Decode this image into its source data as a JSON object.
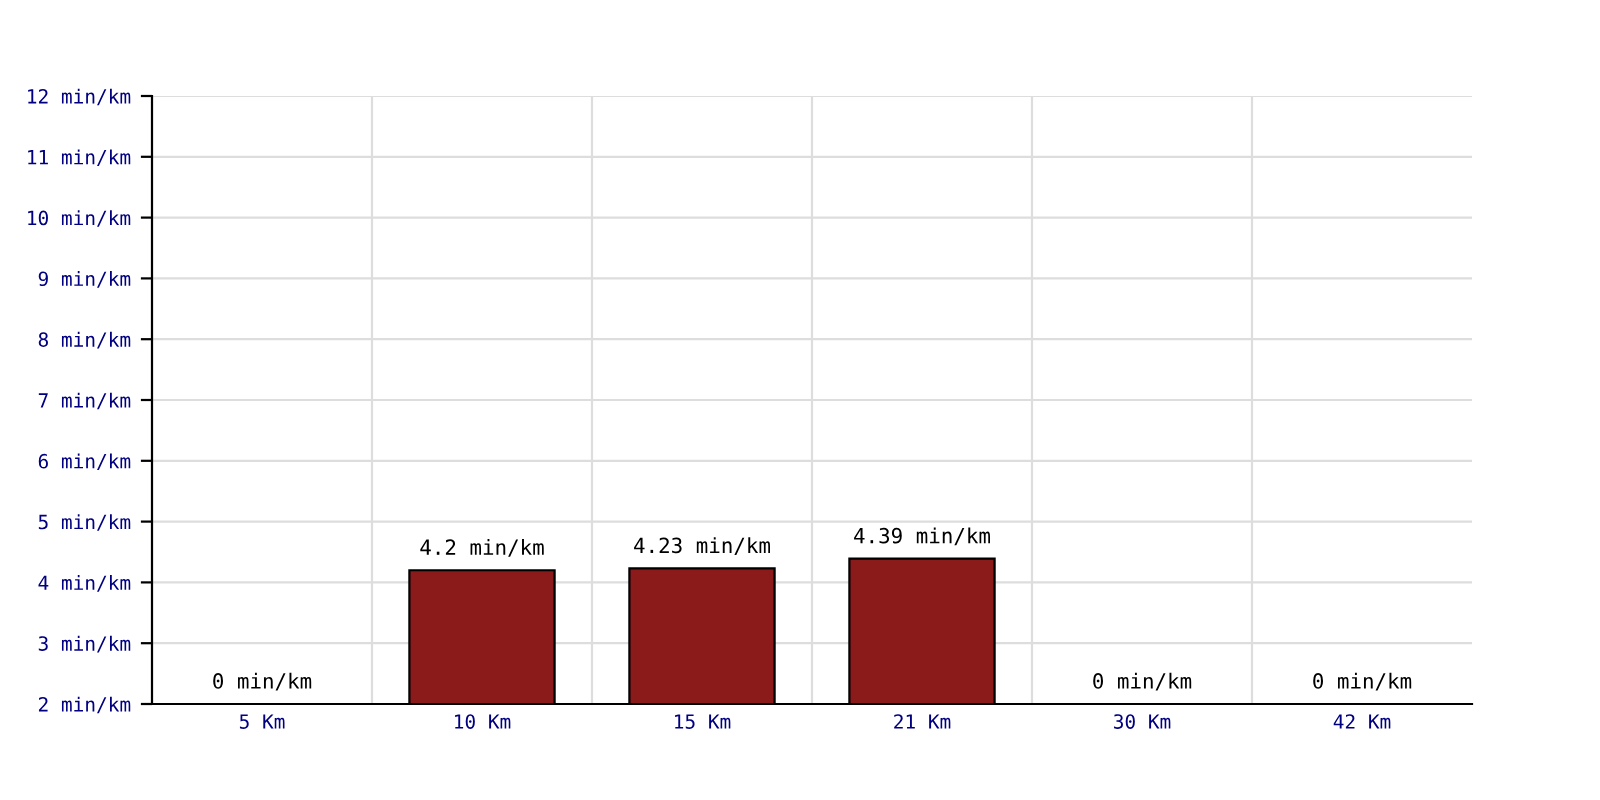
{
  "chart_data": {
    "type": "bar",
    "categories": [
      "5 Km",
      "10 Km",
      "15 Km",
      "21 Km",
      "30 Km",
      "42 Km"
    ],
    "values": [
      null,
      4.2,
      4.23,
      4.39,
      null,
      null
    ],
    "value_labels": [
      "0 min/km",
      "4.2 min/km",
      "4.23 min/km",
      "4.39 min/km",
      "0 min/km",
      "0 min/km"
    ],
    "color": "#8b1a1a",
    "ylim": [
      2,
      12
    ],
    "yticks": [
      {
        "value": 2,
        "label": "2 min/km"
      },
      {
        "value": 3,
        "label": "3 min/km"
      },
      {
        "value": 4,
        "label": "4 min/km"
      },
      {
        "value": 5,
        "label": "5 min/km"
      },
      {
        "value": 6,
        "label": "6 min/km"
      },
      {
        "value": 7,
        "label": "7 min/km"
      },
      {
        "value": 8,
        "label": "8 min/km"
      },
      {
        "value": 9,
        "label": "9 min/km"
      },
      {
        "value": 10,
        "label": "10 min/km"
      },
      {
        "value": 11,
        "label": "11 min/km"
      },
      {
        "value": 12,
        "label": "12 min/km"
      }
    ],
    "grid": true
  }
}
